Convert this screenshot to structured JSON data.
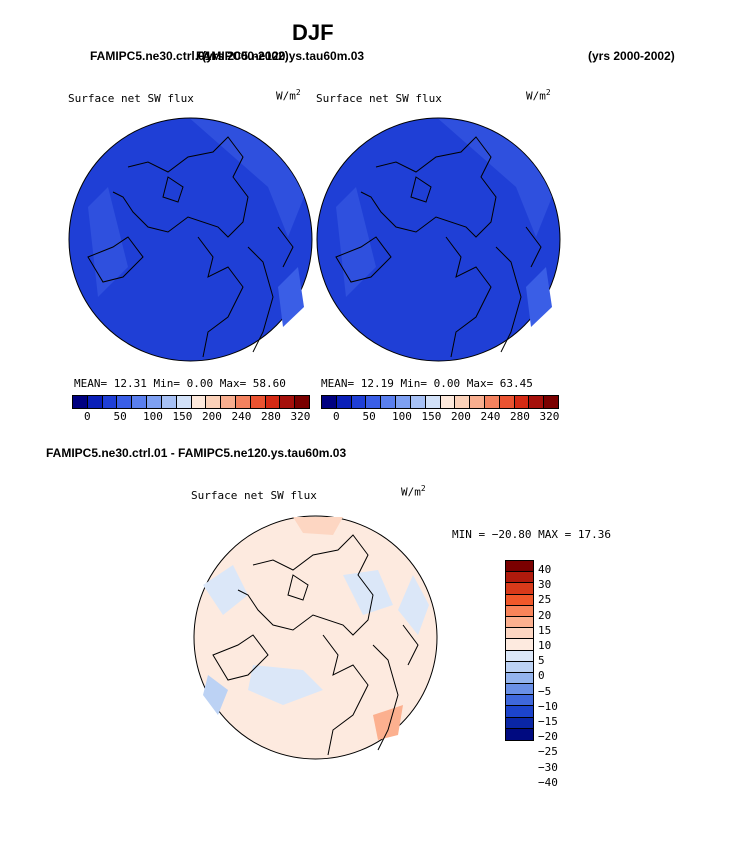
{
  "header": {
    "title": "DJF",
    "left_case_a": "FAMIPC5.ne30.ctrl.01",
    "left_case_b": "FAMIPC5.ne120.ys.tau60m.03",
    "years_overlap": "(yrs 2000-2002)",
    "right_years": "(yrs 2000-2002)"
  },
  "panel1": {
    "variable": "Surface net SW flux",
    "units": "W/m",
    "units_exp": "2",
    "stats": "MEAN=  12.31  Min=   0.00  Max=  58.60"
  },
  "panel2": {
    "variable": "Surface net SW flux",
    "units": "W/m",
    "units_exp": "2",
    "stats": "MEAN=  12.19  Min=   0.00  Max=  63.45"
  },
  "colorbar_main": {
    "colors": [
      "#000080",
      "#0a1fb8",
      "#1f3fd6",
      "#3a5ee6",
      "#5a7fee",
      "#7ea0f2",
      "#a7c1f5",
      "#d2e1f8",
      "#fde9dc",
      "#fbd1b9",
      "#f8ae8f",
      "#f3825f",
      "#ea5331",
      "#d42a14",
      "#a5100b",
      "#7a0000"
    ],
    "ticks": [
      "0",
      "50",
      "100",
      "150",
      "200",
      "240",
      "280",
      "320"
    ]
  },
  "diff": {
    "title": "FAMIPC5.ne30.ctrl.01 - FAMIPC5.ne120.ys.tau60m.03",
    "variable": "Surface net SW flux",
    "units": "W/m",
    "units_exp": "2",
    "minmax": "MIN = −20.80 MAX =  17.36",
    "colors": [
      "#7a0000",
      "#b01a0c",
      "#d83a1a",
      "#f0582a",
      "#f8845a",
      "#fcb08f",
      "#fdd6c2",
      "#fdeadf",
      "#dbe7f8",
      "#bcd2f4",
      "#94b4ee",
      "#6a90e6",
      "#3f68dc",
      "#1c44cc",
      "#0a26a6",
      "#000a80"
    ],
    "labels": [
      "40",
      "30",
      "25",
      "20",
      "15",
      "10",
      "5",
      "0",
      "−5",
      "−10",
      "−15",
      "−20",
      "−25",
      "−30",
      "−40"
    ]
  }
}
